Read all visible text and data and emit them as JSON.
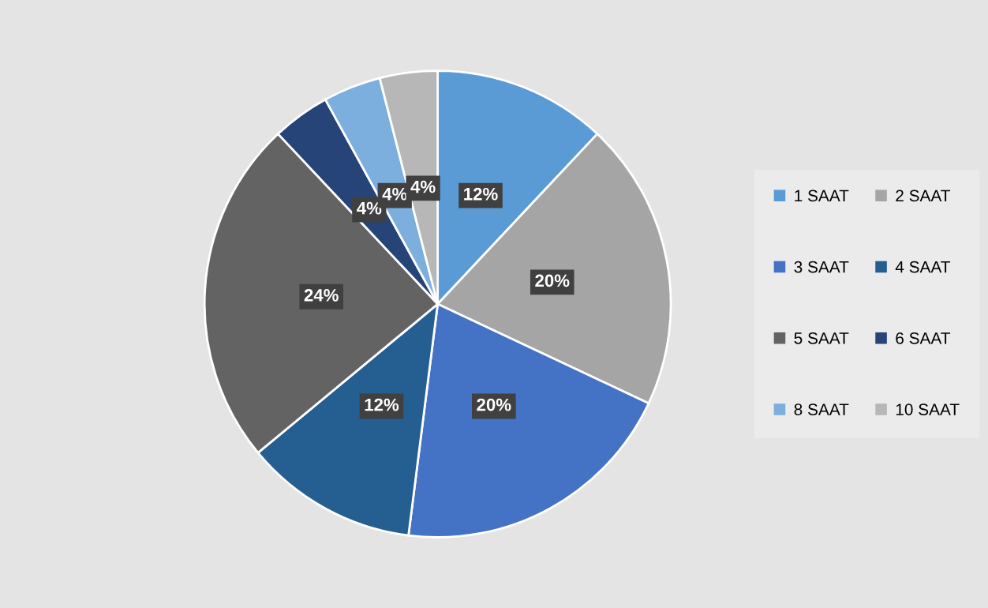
{
  "chart_data": {
    "type": "pie",
    "categories": [
      "1 SAAT",
      "2 SAAT",
      "3 SAAT",
      "4 SAAT",
      "5 SAAT",
      "6 SAAT",
      "8 SAAT",
      "10 SAAT"
    ],
    "values": [
      12,
      20,
      20,
      12,
      24,
      4,
      4,
      4
    ],
    "value_labels": [
      "12%",
      "20%",
      "20%",
      "12%",
      "24%",
      "4%",
      "4%",
      "4%"
    ],
    "colors": [
      "#5b9bd5",
      "#a5a5a5",
      "#4472c4",
      "#255e91",
      "#636363",
      "#264478",
      "#7cafdd",
      "#b7b7b7"
    ],
    "legend": "right"
  }
}
